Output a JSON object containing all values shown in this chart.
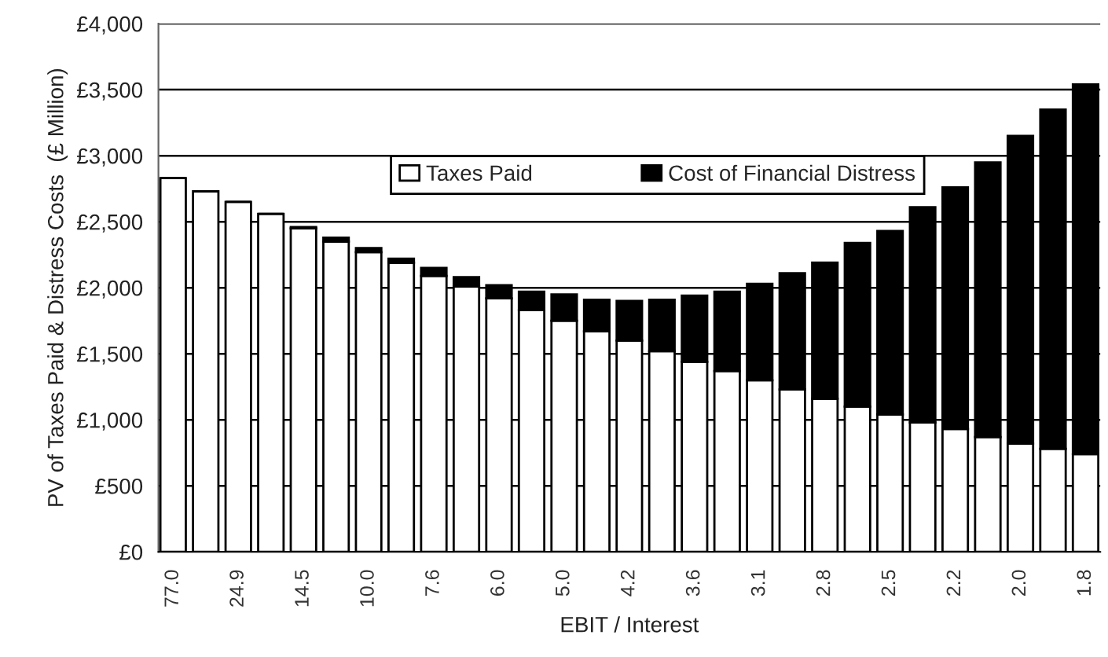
{
  "chart_data": {
    "type": "bar",
    "stacked": true,
    "xlabel": "EBIT / Interest",
    "ylabel": "PV of Taxes Paid & Distress Costs  (£ Million)",
    "categories": [
      "77.0",
      null,
      "24.9",
      null,
      "14.5",
      null,
      "10.0",
      null,
      "7.6",
      null,
      "6.0",
      null,
      "5.0",
      null,
      "4.2",
      null,
      "3.6",
      null,
      "3.1",
      null,
      "2.8",
      null,
      "2.5",
      null,
      "2.2",
      null,
      "2.0",
      null,
      "1.8"
    ],
    "series": [
      {
        "name": "Taxes Paid",
        "color": "#ffffff",
        "values": [
          2830,
          2730,
          2650,
          2560,
          2450,
          2350,
          2270,
          2190,
          2090,
          2010,
          1920,
          1830,
          1750,
          1670,
          1600,
          1520,
          1440,
          1370,
          1300,
          1230,
          1160,
          1100,
          1040,
          980,
          930,
          870,
          820,
          780,
          740
        ]
      },
      {
        "name": "Cost of Financial Distress",
        "color": "#000000",
        "values": [
          0,
          0,
          0,
          0,
          10,
          30,
          30,
          30,
          60,
          70,
          100,
          140,
          200,
          240,
          300,
          390,
          500,
          600,
          730,
          880,
          1030,
          1240,
          1390,
          1630,
          1830,
          2080,
          2330,
          2570,
          2800
        ]
      }
    ],
    "ylim": [
      0,
      4000
    ],
    "yticks": [
      {
        "value": 0,
        "label": "£0"
      },
      {
        "value": 500,
        "label": "£500"
      },
      {
        "value": 1000,
        "label": "£1,000"
      },
      {
        "value": 1500,
        "label": "£1,500"
      },
      {
        "value": 2000,
        "label": "£2,000"
      },
      {
        "value": 2500,
        "label": "£2,500"
      },
      {
        "value": 3000,
        "label": "£3,000"
      },
      {
        "value": 3500,
        "label": "£3,500"
      },
      {
        "value": 4000,
        "label": "£4,000"
      }
    ],
    "grid": "y",
    "legend": "top"
  }
}
